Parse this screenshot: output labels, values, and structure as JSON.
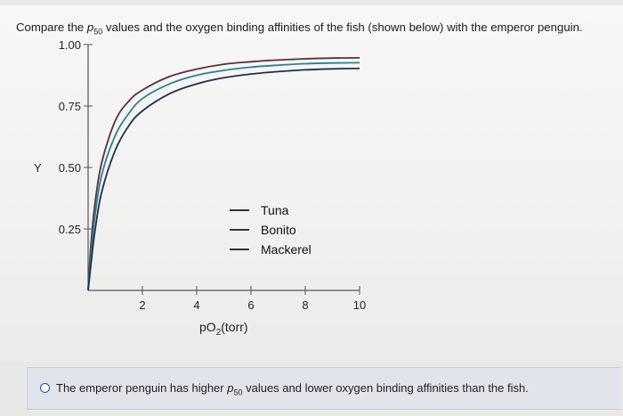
{
  "question": {
    "prefix": "Compare the ",
    "symbol": "p",
    "subscript": "50",
    "suffix": " values and the oxygen binding affinities of the fish (shown below) with the emperor penguin."
  },
  "answer_option": {
    "prefix": "The emperor penguin has higher ",
    "symbol": "p",
    "subscript": "50",
    "suffix": " values and lower oxygen binding affinities than the fish."
  },
  "chart_data": {
    "type": "line",
    "ylabel": "Y",
    "xlabel_main": "pO",
    "xlabel_sub": "2",
    "xlabel_unit": "(torr)",
    "xlim": [
      0,
      10
    ],
    "ylim": [
      0,
      1
    ],
    "x_ticks": [
      "2",
      "4",
      "6",
      "8",
      "10"
    ],
    "x_tick_values": [
      2,
      4,
      6,
      8,
      10
    ],
    "y_ticks": [
      "0.25",
      "0.50",
      "0.75",
      "1.00"
    ],
    "y_tick_values": [
      0.25,
      0.5,
      0.75,
      1.0
    ],
    "series": [
      {
        "name": "Tuna",
        "color": "#5a3038",
        "x": [
          0,
          0.1,
          0.25,
          0.5,
          1,
          1.5,
          2,
          3,
          4,
          5,
          6,
          7,
          8,
          9,
          10
        ],
        "y": [
          0,
          0.18,
          0.35,
          0.52,
          0.69,
          0.77,
          0.815,
          0.87,
          0.9,
          0.92,
          0.93,
          0.937,
          0.942,
          0.945,
          0.946
        ]
      },
      {
        "name": "Bonito",
        "color": "#2f7f92",
        "x": [
          0,
          0.1,
          0.25,
          0.5,
          1,
          1.5,
          2,
          3,
          4,
          5,
          6,
          7,
          8,
          9,
          10
        ],
        "y": [
          0,
          0.14,
          0.3,
          0.47,
          0.63,
          0.72,
          0.78,
          0.84,
          0.875,
          0.895,
          0.908,
          0.916,
          0.922,
          0.925,
          0.926
        ]
      },
      {
        "name": "Mackerel",
        "color": "#1f2f4d",
        "x": [
          0,
          0.1,
          0.25,
          0.5,
          1,
          1.5,
          2,
          3,
          4,
          5,
          6,
          7,
          8,
          9,
          10
        ],
        "y": [
          0,
          0.1,
          0.24,
          0.4,
          0.57,
          0.67,
          0.73,
          0.8,
          0.84,
          0.865,
          0.88,
          0.89,
          0.897,
          0.901,
          0.903
        ]
      }
    ]
  }
}
